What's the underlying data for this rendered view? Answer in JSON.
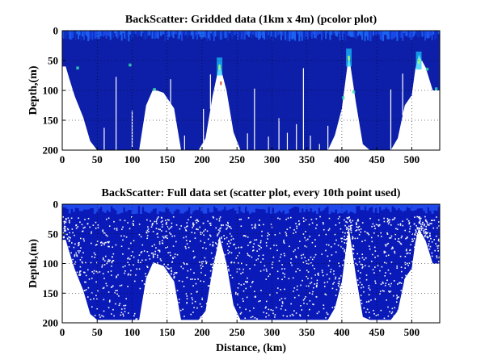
{
  "chart_data": [
    {
      "type": "heatmap",
      "title": "BackScatter: Gridded data (1km x 4m) (pcolor plot)",
      "xlabel": "",
      "ylabel": "Depth,(m)",
      "xlim": [
        0,
        540
      ],
      "ylim": [
        200,
        0
      ],
      "y_reversed": true,
      "xticks": [
        0,
        50,
        100,
        150,
        200,
        250,
        300,
        350,
        400,
        450,
        500
      ],
      "yticks": [
        0,
        50,
        100,
        150,
        200
      ],
      "grid": "dotted",
      "colormap": "jet",
      "seafloor_profile": {
        "x": [
          0,
          5,
          10,
          18,
          30,
          40,
          50,
          60,
          75,
          90,
          100,
          110,
          120,
          130,
          145,
          160,
          170,
          185,
          195,
          205,
          215,
          225,
          235,
          245,
          255,
          265,
          280,
          300,
          320,
          340,
          360,
          380,
          390,
          400,
          410,
          420,
          430,
          440,
          450,
          460,
          470,
          480,
          490,
          500,
          505,
          510,
          520,
          530,
          540
        ],
        "depth": [
          60,
          60,
          80,
          110,
          145,
          185,
          200,
          200,
          200,
          200,
          200,
          200,
          125,
          98,
          104,
          130,
          200,
          200,
          200,
          180,
          110,
          55,
          100,
          170,
          200,
          200,
          200,
          200,
          200,
          200,
          200,
          200,
          175,
          130,
          40,
          120,
          190,
          200,
          200,
          200,
          200,
          180,
          125,
          108,
          65,
          40,
          62,
          100,
          100
        ]
      }
    },
    {
      "type": "scatter",
      "title": "BackScatter: Full data set (scatter plot, every 10th point used)",
      "xlabel": "Distance, (km)",
      "ylabel": "Depth,(m)",
      "xlim": [
        0,
        540
      ],
      "ylim": [
        200,
        0
      ],
      "y_reversed": true,
      "xticks": [
        0,
        50,
        100,
        150,
        200,
        250,
        300,
        350,
        400,
        450,
        500
      ],
      "yticks": [
        0,
        50,
        100,
        150,
        200
      ],
      "grid": "dotted",
      "marker_color": "#0a1ab8",
      "seafloor_profile": {
        "x": [
          0,
          5,
          10,
          18,
          30,
          40,
          50,
          60,
          75,
          90,
          100,
          110,
          120,
          130,
          145,
          160,
          170,
          185,
          195,
          205,
          215,
          225,
          235,
          245,
          255,
          265,
          280,
          300,
          320,
          340,
          360,
          380,
          390,
          400,
          410,
          420,
          430,
          440,
          450,
          460,
          470,
          480,
          490,
          500,
          505,
          510,
          520,
          530,
          540
        ],
        "depth": [
          60,
          60,
          80,
          110,
          145,
          185,
          195,
          195,
          195,
          195,
          195,
          195,
          125,
          98,
          104,
          130,
          195,
          195,
          195,
          180,
          110,
          55,
          100,
          170,
          195,
          195,
          195,
          195,
          195,
          195,
          195,
          195,
          175,
          130,
          40,
          120,
          190,
          195,
          195,
          195,
          195,
          180,
          125,
          108,
          65,
          40,
          62,
          100,
          100
        ]
      }
    }
  ]
}
